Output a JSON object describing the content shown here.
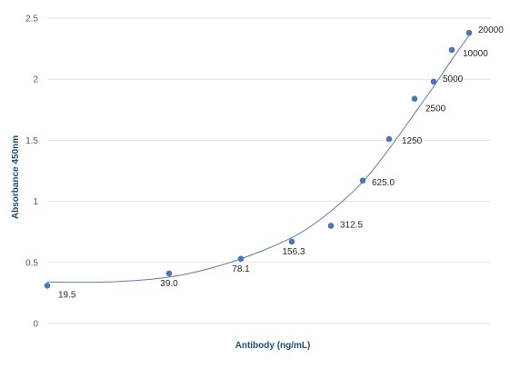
{
  "chart_data": {
    "type": "scatter",
    "title": "",
    "xlabel": "Antibody  (ng/mL)",
    "ylabel": "Absorbance 450nm",
    "ylim": [
      0,
      2.5
    ],
    "y_ticks": [
      "0",
      "0.5",
      "1",
      "1.5",
      "2",
      "2.5"
    ],
    "grid": "horizontal",
    "trendline": "smooth curve",
    "colors": {
      "point": "#4a77b4",
      "curve": "#5b7ea6",
      "grid": "#e3e3e3",
      "axis_title": "#1f4e79"
    },
    "points": [
      {
        "label": "19.5",
        "y": 0.31
      },
      {
        "label": "39.0",
        "y": 0.41
      },
      {
        "label": "78.1",
        "y": 0.53
      },
      {
        "label": "156.3",
        "y": 0.67
      },
      {
        "label": "312.5",
        "y": 0.8
      },
      {
        "label": "625.0",
        "y": 1.17
      },
      {
        "label": "1250",
        "y": 1.51
      },
      {
        "label": "2500",
        "y": 1.84
      },
      {
        "label": "5000",
        "y": 1.98
      },
      {
        "label": "10000",
        "y": 2.24
      },
      {
        "label": "20000",
        "y": 2.38
      }
    ]
  }
}
